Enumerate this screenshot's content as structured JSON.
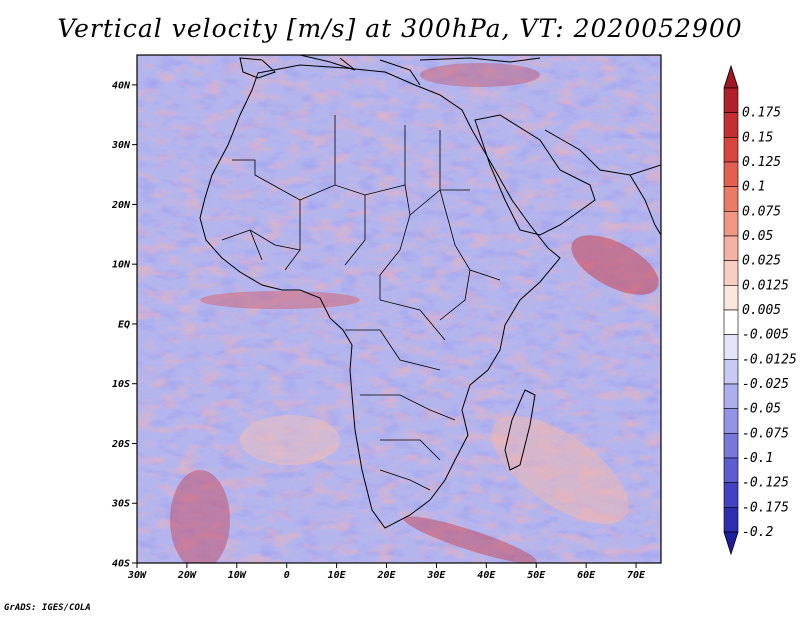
{
  "title": "Vertical velocity [m/s] at 300hPa, VT: 2020052900",
  "footer": "GrADS: IGES/COLA",
  "map": {
    "lon_range": [
      -30,
      75
    ],
    "lat_range": [
      -40,
      45
    ],
    "lat_ticks": [
      {
        "value": 40,
        "label": "40N"
      },
      {
        "value": 30,
        "label": "30N"
      },
      {
        "value": 20,
        "label": "20N"
      },
      {
        "value": 10,
        "label": "10N"
      },
      {
        "value": 0,
        "label": "EQ"
      },
      {
        "value": -10,
        "label": "10S"
      },
      {
        "value": -20,
        "label": "20S"
      },
      {
        "value": -30,
        "label": "30S"
      },
      {
        "value": -40,
        "label": "40S"
      }
    ],
    "lon_ticks": [
      {
        "value": -30,
        "label": "30W"
      },
      {
        "value": -20,
        "label": "20W"
      },
      {
        "value": -10,
        "label": "10W"
      },
      {
        "value": 0,
        "label": "0"
      },
      {
        "value": 10,
        "label": "10E"
      },
      {
        "value": 20,
        "label": "20E"
      },
      {
        "value": 30,
        "label": "30E"
      },
      {
        "value": 40,
        "label": "40E"
      },
      {
        "value": 50,
        "label": "50E"
      },
      {
        "value": 60,
        "label": "60E"
      },
      {
        "value": 70,
        "label": "70E"
      }
    ]
  },
  "colorbar": {
    "levels": [
      {
        "label": "0.175",
        "color": "#b0202a"
      },
      {
        "label": "0.15",
        "color": "#c52f33"
      },
      {
        "label": "0.125",
        "color": "#d9463e"
      },
      {
        "label": "0.1",
        "color": "#e2604f"
      },
      {
        "label": "0.075",
        "color": "#ea7b67"
      },
      {
        "label": "0.05",
        "color": "#f09783"
      },
      {
        "label": "0.025",
        "color": "#f5b2a2"
      },
      {
        "label": "0.0125",
        "color": "#f9cdc2"
      },
      {
        "label": "0.005",
        "color": "#fce6df"
      },
      {
        "label": "-0.005",
        "color": "#ffffff"
      },
      {
        "label": "-0.0125",
        "color": "#e3e3fa"
      },
      {
        "label": "-0.025",
        "color": "#c9c9f4"
      },
      {
        "label": "-0.05",
        "color": "#aeaeee"
      },
      {
        "label": "-0.075",
        "color": "#9393e7"
      },
      {
        "label": "-0.1",
        "color": "#7777dc"
      },
      {
        "label": "-0.125",
        "color": "#5c5cd0"
      },
      {
        "label": "-0.175",
        "color": "#4343c2"
      },
      {
        "label": "-0.2",
        "color": "#2d2db0"
      }
    ],
    "top_triangle_color": "#a01822",
    "bottom_triangle_color": "#1e1ea0"
  }
}
